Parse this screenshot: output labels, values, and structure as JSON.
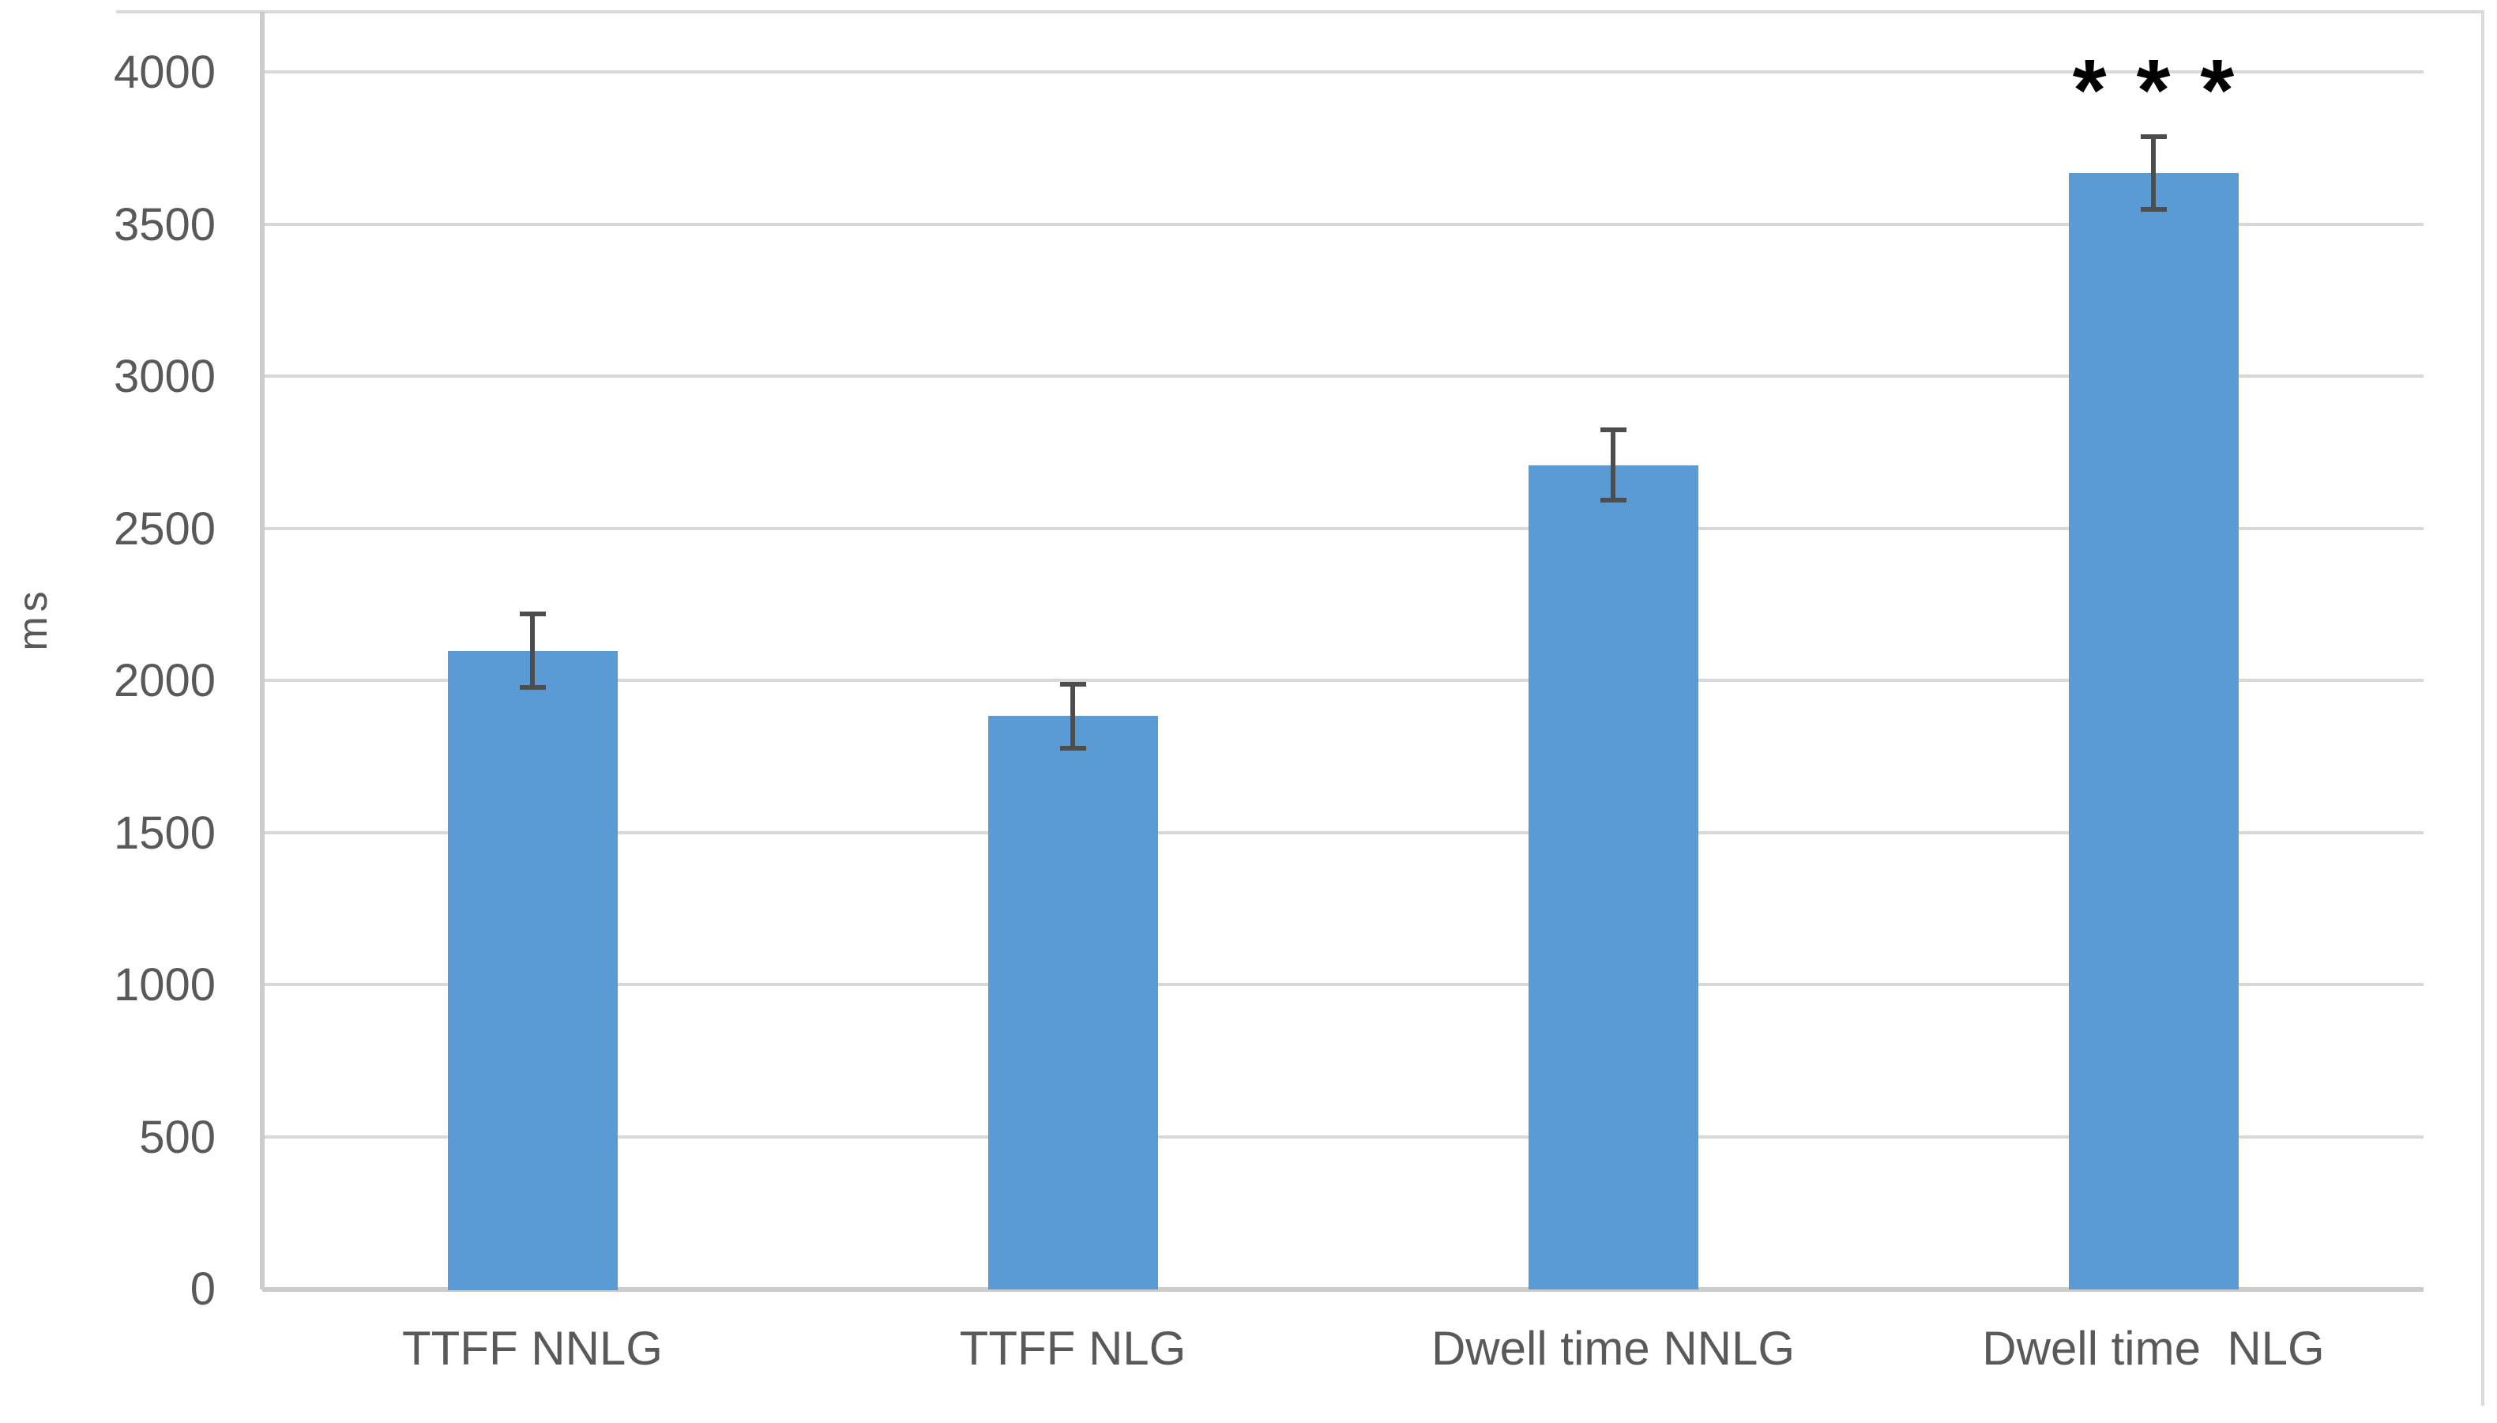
{
  "chart_data": {
    "type": "bar",
    "title": "",
    "xlabel": "",
    "ylabel": "ms",
    "categories": [
      "TTFF NNLG",
      "TTFF NLG",
      "Dwell time NNLG",
      "Dwell time  NLG"
    ],
    "values": [
      2100,
      1885,
      2710,
      3670
    ],
    "error_bars": [
      120,
      105,
      115,
      120
    ],
    "yticks": [
      0,
      500,
      1000,
      1500,
      2000,
      2500,
      3000,
      3500,
      4000
    ],
    "ylim": [
      0,
      4200
    ],
    "grid": "horizontal",
    "legend": "none",
    "annotation": {
      "text": "***",
      "category_index": 3
    },
    "colors": {
      "bar": "#5B9BD5",
      "gridline": "#D9D9D9",
      "axis": "#CCCCCC",
      "tick_text": "#595959",
      "error_bar": "#4D4D4D",
      "annotation": "#000000",
      "background": "#FFFFFF"
    }
  }
}
